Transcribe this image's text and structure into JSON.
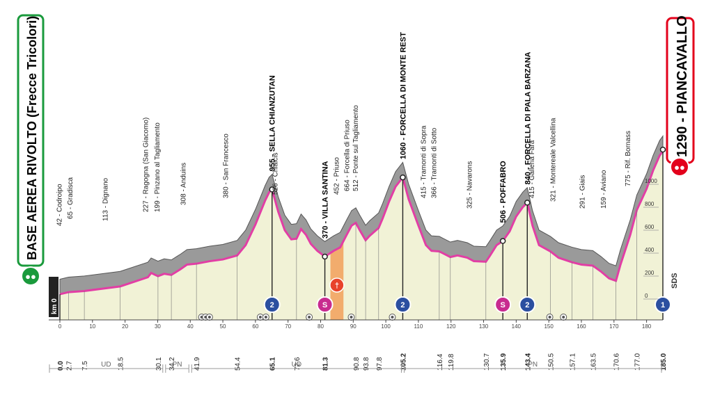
{
  "start": {
    "name": "BASE AEREA RIVOLTO (Frecce Tricolori)",
    "alt_label": "km 0",
    "color": "#1a9a3c"
  },
  "finish": {
    "name": "1290 - PIANCAVALLO",
    "color": "#e3001b"
  },
  "colors": {
    "profile_top": "#9a9a9a",
    "profile_bottom": "#e23ea5",
    "fill": "#f1f2d6",
    "kom_blue": "#2b4fa0",
    "sprint_pink": "#c82b8f",
    "feed_orange": "#f2a05a"
  },
  "elevation_scale": [
    "1000",
    "800",
    "600",
    "400",
    "200",
    "0"
  ],
  "elevation_axis_label": "SDS",
  "km_ticks": [
    "0",
    "10",
    "20",
    "30",
    "40",
    "50",
    "60",
    "70",
    "80",
    "90",
    "100",
    "110",
    "120",
    "130",
    "140",
    "150",
    "160",
    "170",
    "180"
  ],
  "km_markers": [
    {
      "km": 0.0,
      "label": "0.0",
      "bold": true
    },
    {
      "km": 2.7,
      "label": "2.7"
    },
    {
      "km": 7.5,
      "label": "7.5"
    },
    {
      "km": 18.5,
      "label": "18.5"
    },
    {
      "km": 30.1,
      "label": "30.1"
    },
    {
      "km": 34.2,
      "label": "34.2"
    },
    {
      "km": 41.9,
      "label": "41.9"
    },
    {
      "km": 54.4,
      "label": "54.4"
    },
    {
      "km": 65.1,
      "label": "65.1",
      "bold": true
    },
    {
      "km": 72.6,
      "label": "72.6"
    },
    {
      "km": 81.3,
      "label": "81.3",
      "bold": true
    },
    {
      "km": 90.8,
      "label": "90.8"
    },
    {
      "km": 93.8,
      "label": "93.8"
    },
    {
      "km": 97.8,
      "label": "97.8"
    },
    {
      "km": 105.2,
      "label": "105.2",
      "bold": true
    },
    {
      "km": 116.4,
      "label": "116.4"
    },
    {
      "km": 119.8,
      "label": "119.8"
    },
    {
      "km": 130.7,
      "label": "130.7"
    },
    {
      "km": 135.9,
      "label": "135.9",
      "bold": true
    },
    {
      "km": 143.4,
      "label": "143.4",
      "bold": true
    },
    {
      "km": 150.5,
      "label": "150.5"
    },
    {
      "km": 157.1,
      "label": "157.1"
    },
    {
      "km": 163.5,
      "label": "163.5"
    },
    {
      "km": 170.6,
      "label": "170.6"
    },
    {
      "km": 177.0,
      "label": "177.0"
    },
    {
      "km": 185.0,
      "label": "185.0",
      "bold": true
    }
  ],
  "places": [
    {
      "km": 0.5,
      "label": "42 - Codroipo",
      "y": 325
    },
    {
      "km": 3.8,
      "label": "65 - Gradisca",
      "y": 315
    },
    {
      "km": 14.6,
      "label": "113 - Dignano",
      "y": 318
    },
    {
      "km": 27.0,
      "label": "227 - Ragogna (San Giacomo)",
      "y": 305
    },
    {
      "km": 30.6,
      "label": "199 - Pinzano al Tagliamento",
      "y": 305
    },
    {
      "km": 38.6,
      "label": "308 - Anduins",
      "y": 295
    },
    {
      "km": 51.6,
      "label": "380 - San Francesco",
      "y": 285
    },
    {
      "km": 66.8,
      "label": "526 - Chiaicis",
      "y": 280
    },
    {
      "km": 85.6,
      "label": "452 - Priuso",
      "y": 280
    },
    {
      "km": 88.8,
      "label": "664 - Forcella di Priuso",
      "y": 275
    },
    {
      "km": 91.4,
      "label": "512 - Ponte sul Tagliamento",
      "y": 275
    },
    {
      "km": 112.3,
      "label": "415 - Tramonti di Sopra",
      "y": 285
    },
    {
      "km": 115.5,
      "label": "366 - Tramonti di Sotto",
      "y": 285
    },
    {
      "km": 126.4,
      "label": "325 - Navarons",
      "y": 300
    },
    {
      "km": 145.5,
      "label": "415 - Galleria Fara",
      "y": 285
    },
    {
      "km": 152.0,
      "label": "321 - Montereale Valcellina",
      "y": 290
    },
    {
      "km": 161.0,
      "label": "291 - Giais",
      "y": 300
    },
    {
      "km": 167.5,
      "label": "159 - Aviano",
      "y": 300
    },
    {
      "km": 175.0,
      "label": "775 - Rif. Bornass",
      "y": 268
    }
  ],
  "climbs": [
    {
      "km": 65.1,
      "label": "955 - SELLA CHIANZUTAN",
      "type": "kom",
      "cat": "2"
    },
    {
      "km": 81.3,
      "label": "370 - VILLA SANTINA",
      "type": "sprint",
      "cat": "S"
    },
    {
      "km": 105.2,
      "label": "1060 - FORCELLA DI MONTE REST",
      "type": "kom",
      "cat": "2"
    },
    {
      "km": 135.9,
      "label": "506 - POFFABRO",
      "type": "sprint",
      "cat": "S"
    },
    {
      "km": 143.4,
      "label": "840 - FORCELLA DI PALA BARZANA",
      "type": "kom",
      "cat": "2"
    },
    {
      "km": 185.0,
      "label": "",
      "type": "kom",
      "cat": "1"
    }
  ],
  "feed_zone_km": [
    83.0,
    87.0
  ],
  "tunnels_km": [
    43.5,
    44.7,
    45.9,
    61.5,
    63.2,
    76.5,
    89.4,
    102.0,
    150.3,
    154.5
  ],
  "profile": [
    [
      0,
      42
    ],
    [
      2.7,
      60
    ],
    [
      7.5,
      70
    ],
    [
      18.5,
      110
    ],
    [
      27,
      190
    ],
    [
      28,
      227
    ],
    [
      30.1,
      199
    ],
    [
      32,
      220
    ],
    [
      34.2,
      210
    ],
    [
      37,
      260
    ],
    [
      39,
      300
    ],
    [
      41.9,
      308
    ],
    [
      46,
      330
    ],
    [
      50,
      345
    ],
    [
      54.4,
      380
    ],
    [
      57,
      470
    ],
    [
      60,
      650
    ],
    [
      63,
      860
    ],
    [
      64.2,
      930
    ],
    [
      65.1,
      955
    ],
    [
      67,
      760
    ],
    [
      69,
      600
    ],
    [
      71,
      520
    ],
    [
      72.6,
      526
    ],
    [
      74,
      610
    ],
    [
      75.5,
      560
    ],
    [
      77,
      480
    ],
    [
      79,
      420
    ],
    [
      81.3,
      370
    ],
    [
      84,
      420
    ],
    [
      86,
      450
    ],
    [
      88,
      560
    ],
    [
      89.5,
      640
    ],
    [
      90.8,
      664
    ],
    [
      92,
      600
    ],
    [
      93.8,
      512
    ],
    [
      95,
      550
    ],
    [
      97.8,
      620
    ],
    [
      99,
      700
    ],
    [
      101,
      850
    ],
    [
      103,
      980
    ],
    [
      105.2,
      1060
    ],
    [
      107,
      870
    ],
    [
      110,
      640
    ],
    [
      112.3,
      470
    ],
    [
      114,
      420
    ],
    [
      116.4,
      415
    ],
    [
      119.8,
      366
    ],
    [
      122,
      380
    ],
    [
      125,
      360
    ],
    [
      127,
      330
    ],
    [
      130.7,
      325
    ],
    [
      132,
      380
    ],
    [
      134,
      470
    ],
    [
      135.9,
      506
    ],
    [
      138,
      590
    ],
    [
      140,
      720
    ],
    [
      142,
      800
    ],
    [
      143.4,
      840
    ],
    [
      145,
      640
    ],
    [
      147,
      470
    ],
    [
      150.5,
      415
    ],
    [
      153,
      360
    ],
    [
      157.1,
      321
    ],
    [
      160,
      300
    ],
    [
      163.5,
      291
    ],
    [
      166,
      240
    ],
    [
      168.5,
      180
    ],
    [
      170.6,
      159
    ],
    [
      172,
      300
    ],
    [
      175,
      560
    ],
    [
      177,
      775
    ],
    [
      180,
      960
    ],
    [
      182,
      1120
    ],
    [
      184,
      1250
    ],
    [
      185,
      1290
    ]
  ],
  "regions": [
    {
      "from": 0,
      "to": 32,
      "label": "UD"
    },
    {
      "from": 32,
      "to": 40,
      "label": "PN"
    },
    {
      "from": 40,
      "to": 105.2,
      "label": "UD"
    },
    {
      "from": 105.2,
      "to": 185,
      "label": "PN"
    }
  ]
}
